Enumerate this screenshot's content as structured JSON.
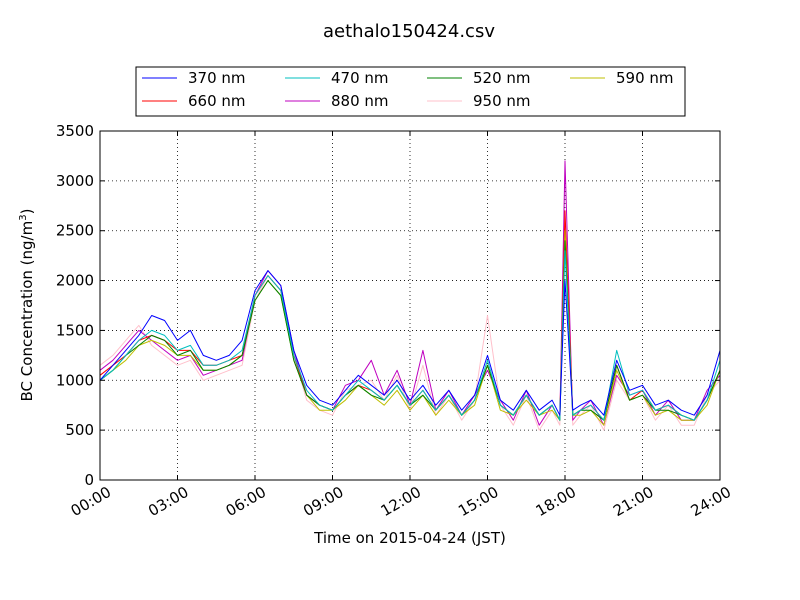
{
  "chart_data": {
    "type": "line",
    "title": "aethalo150424.csv",
    "xlabel": "Time on 2015-04-24 (JST)",
    "ylabel": "BC Concentration (ng/m",
    "ylabel_sup": "3",
    "ylabel_close": ")",
    "xlim": [
      0,
      24
    ],
    "ylim": [
      0,
      3500
    ],
    "grid": true,
    "legend_placement": "top-center",
    "x_ticks": [
      0,
      3,
      6,
      9,
      12,
      15,
      18,
      21,
      24
    ],
    "x_tick_labels": [
      "00:00",
      "03:00",
      "06:00",
      "09:00",
      "12:00",
      "15:00",
      "18:00",
      "21:00",
      "24:00"
    ],
    "y_ticks": [
      0,
      500,
      1000,
      1500,
      2000,
      2500,
      3000,
      3500
    ],
    "y_tick_labels": [
      "0",
      "500",
      "1000",
      "1500",
      "2000",
      "2500",
      "3000",
      "3500"
    ],
    "x_unit": "hours since 00:00",
    "x": [
      0,
      0.5,
      1,
      1.5,
      2,
      2.5,
      3,
      3.5,
      4,
      4.5,
      5,
      5.5,
      6,
      6.5,
      7,
      7.5,
      8,
      8.5,
      9,
      9.5,
      10,
      10.5,
      11,
      11.5,
      12,
      12.5,
      13,
      13.5,
      14,
      14.5,
      15,
      15.5,
      16,
      16.5,
      17,
      17.5,
      17.8,
      18,
      18.3,
      18.6,
      19,
      19.5,
      20,
      20.5,
      21,
      21.5,
      22,
      22.5,
      23,
      23.5,
      24
    ],
    "series": [
      {
        "name": "370 nm",
        "color": "#0000ff",
        "values": [
          1000,
          1150,
          1300,
          1450,
          1650,
          1600,
          1400,
          1500,
          1250,
          1200,
          1250,
          1400,
          1900,
          2100,
          1950,
          1300,
          950,
          800,
          750,
          900,
          1050,
          950,
          850,
          1000,
          800,
          950,
          750,
          900,
          700,
          850,
          1250,
          800,
          700,
          900,
          700,
          800,
          650,
          2000,
          700,
          750,
          800,
          650,
          1200,
          900,
          950,
          750,
          800,
          700,
          650,
          850,
          1300
        ]
      },
      {
        "name": "470 nm",
        "color": "#00bfbf",
        "values": [
          1000,
          1100,
          1250,
          1400,
          1500,
          1450,
          1300,
          1350,
          1150,
          1150,
          1200,
          1300,
          1850,
          2050,
          1900,
          1250,
          900,
          750,
          700,
          850,
          1000,
          900,
          800,
          950,
          750,
          900,
          700,
          850,
          650,
          800,
          1200,
          750,
          650,
          850,
          650,
          750,
          600,
          2300,
          650,
          700,
          750,
          600,
          1300,
          850,
          900,
          700,
          750,
          650,
          600,
          800,
          1200
        ]
      },
      {
        "name": "520 nm",
        "color": "#008000",
        "values": [
          1000,
          1100,
          1250,
          1350,
          1450,
          1400,
          1250,
          1300,
          1100,
          1100,
          1150,
          1250,
          1800,
          2000,
          1850,
          1200,
          850,
          750,
          700,
          850,
          950,
          850,
          800,
          950,
          750,
          850,
          700,
          850,
          650,
          800,
          1150,
          750,
          650,
          850,
          650,
          750,
          600,
          2400,
          650,
          700,
          700,
          600,
          1150,
          800,
          850,
          700,
          700,
          650,
          600,
          800,
          1100
        ]
      },
      {
        "name": "590 nm",
        "color": "#bfbf00",
        "values": [
          1000,
          1100,
          1200,
          1350,
          1400,
          1350,
          1250,
          1250,
          1100,
          1100,
          1150,
          1250,
          1800,
          2000,
          1850,
          1200,
          850,
          700,
          700,
          800,
          950,
          850,
          750,
          900,
          700,
          850,
          650,
          800,
          650,
          750,
          1150,
          700,
          650,
          800,
          650,
          700,
          600,
          2500,
          650,
          650,
          700,
          550,
          1100,
          800,
          850,
          650,
          700,
          600,
          600,
          750,
          1100
        ]
      },
      {
        "name": "660 nm",
        "color": "#ff0000",
        "values": [
          1050,
          1150,
          1250,
          1400,
          1450,
          1400,
          1300,
          1300,
          1150,
          1150,
          1200,
          1250,
          1850,
          2050,
          1900,
          1250,
          850,
          750,
          700,
          850,
          950,
          900,
          800,
          950,
          750,
          900,
          700,
          850,
          650,
          800,
          1150,
          750,
          650,
          850,
          650,
          750,
          600,
          2700,
          650,
          700,
          750,
          600,
          1150,
          800,
          900,
          700,
          750,
          650,
          600,
          800,
          1100
        ]
      },
      {
        "name": "880 nm",
        "color": "#bf00bf",
        "values": [
          1100,
          1200,
          1350,
          1500,
          1400,
          1300,
          1200,
          1250,
          1050,
          1100,
          1150,
          1200,
          1850,
          2100,
          1950,
          1300,
          850,
          750,
          700,
          950,
          1000,
          1200,
          850,
          1100,
          750,
          1300,
          700,
          900,
          650,
          850,
          1100,
          800,
          600,
          900,
          550,
          750,
          600,
          3200,
          600,
          700,
          800,
          550,
          1050,
          850,
          900,
          650,
          800,
          600,
          600,
          900,
          1050
        ]
      },
      {
        "name": "950 nm",
        "color": "#ffc0cb",
        "values": [
          1150,
          1250,
          1400,
          1550,
          1350,
          1250,
          1150,
          1200,
          1000,
          1050,
          1100,
          1150,
          1800,
          2050,
          1900,
          1250,
          800,
          700,
          650,
          900,
          950,
          1000,
          800,
          1050,
          700,
          1150,
          650,
          850,
          600,
          800,
          1650,
          750,
          550,
          850,
          500,
          700,
          550,
          2600,
          550,
          650,
          750,
          500,
          1000,
          800,
          850,
          600,
          750,
          550,
          550,
          850,
          1000
        ]
      }
    ]
  }
}
